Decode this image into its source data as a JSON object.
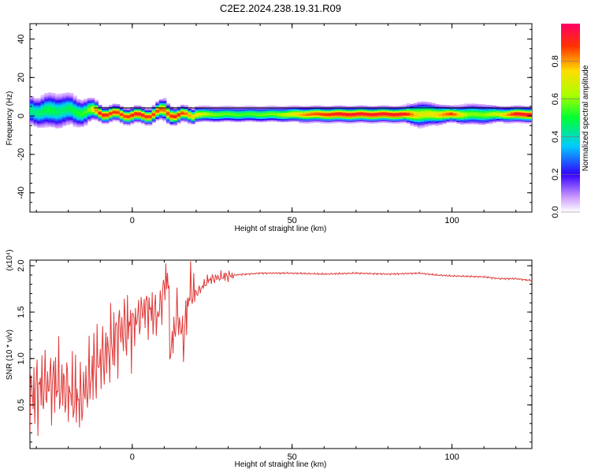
{
  "figure_title": "C2E2.2024.238.19.31.R09",
  "chart_data": [
    {
      "type": "heatmap",
      "xlabel": "Height of straight line (km)",
      "ylabel": "Frequency (Hz)",
      "xlim": [
        -32,
        125
      ],
      "ylim": [
        -50,
        48
      ],
      "x_ticks": [
        0,
        50,
        100
      ],
      "x_tick_labels": [
        "0",
        "50",
        "100"
      ],
      "y_ticks": [
        -40,
        -20,
        0,
        20,
        40
      ],
      "y_tick_labels": [
        "-40",
        "-20",
        "0",
        "20",
        "40"
      ],
      "grid": false,
      "colorbar": {
        "label": "Normalized spectral amplitude",
        "range": [
          0,
          1
        ],
        "ticks": [
          0.0,
          0.2,
          0.4,
          0.6,
          0.8
        ],
        "tick_labels": [
          "0.0",
          "0.2",
          "0.4",
          "0.6",
          "0.8"
        ]
      },
      "ridge": {
        "x": [
          -30,
          -26,
          -22,
          -18,
          -14,
          -10,
          -6,
          -2,
          2,
          6,
          10,
          14,
          18,
          25,
          35,
          45,
          55,
          65,
          75,
          85,
          90,
          95,
          100,
          105,
          110,
          115,
          120,
          125
        ],
        "frequency": [
          3,
          2,
          4,
          2,
          3,
          2,
          1,
          1,
          0,
          1,
          3,
          0,
          1,
          1,
          1,
          1,
          1,
          1,
          1,
          1,
          1,
          1,
          1,
          1,
          1,
          1,
          1,
          1
        ],
        "peak_amplitude": [
          0.45,
          0.5,
          0.45,
          0.5,
          0.55,
          0.95,
          0.9,
          0.9,
          0.95,
          0.9,
          0.85,
          0.95,
          0.8,
          0.6,
          0.55,
          0.6,
          0.85,
          0.95,
          0.95,
          0.95,
          0.7,
          0.75,
          0.9,
          0.6,
          0.6,
          0.7,
          0.95,
          0.95
        ],
        "spread_hz": [
          6,
          7,
          7,
          6,
          5,
          3,
          3,
          3,
          3,
          3,
          4,
          3,
          3,
          3,
          3,
          3,
          3,
          3,
          3,
          3,
          5,
          4,
          3,
          4,
          4,
          3,
          3,
          3
        ]
      }
    },
    {
      "type": "line",
      "xlabel": "Height of straight line (km)",
      "ylabel": "SNR (10 * v/v)",
      "y_multiplier": "(x10⁴)",
      "xlim": [
        -32,
        125
      ],
      "ylim": [
        0.03,
        2.06
      ],
      "x_ticks": [
        0,
        50,
        100
      ],
      "x_tick_labels": [
        "0",
        "50",
        "100"
      ],
      "y_ticks": [
        0.5,
        1.0,
        1.5,
        2.0
      ],
      "y_tick_labels": [
        "0.5",
        "1.0",
        "1.5",
        "2.0"
      ],
      "grid": false,
      "color": "#e03a3a",
      "series": [
        {
          "x": [
            -32,
            -28,
            -24,
            -20,
            -16,
            -12,
            -8,
            -4,
            0,
            4,
            8,
            10,
            11,
            12,
            14,
            16,
            18,
            20,
            24,
            28,
            32,
            40,
            50,
            60,
            70,
            80,
            90,
            95,
            100,
            110,
            115,
            120,
            125
          ],
          "y": [
            0.6,
            0.7,
            0.75,
            0.65,
            0.55,
            0.9,
            1.05,
            1.3,
            1.35,
            1.55,
            1.45,
            1.75,
            1.95,
            1.05,
            1.5,
            1.2,
            1.75,
            1.7,
            1.85,
            1.88,
            1.9,
            1.92,
            1.92,
            1.91,
            1.92,
            1.91,
            1.92,
            1.9,
            1.89,
            1.88,
            1.86,
            1.86,
            1.84
          ]
        }
      ]
    }
  ]
}
